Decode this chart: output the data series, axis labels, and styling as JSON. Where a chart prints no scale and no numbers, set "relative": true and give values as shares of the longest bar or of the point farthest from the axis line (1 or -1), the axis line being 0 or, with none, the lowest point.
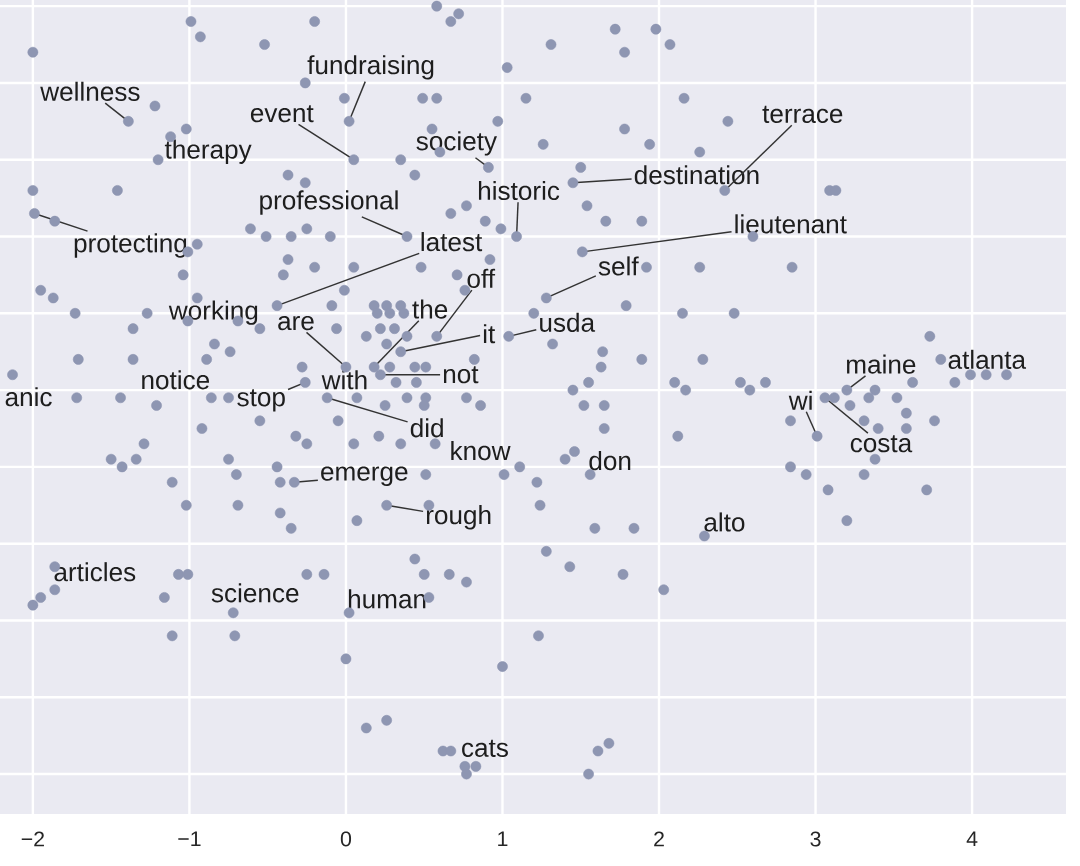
{
  "chart_data": {
    "type": "scatter",
    "relative": true,
    "color": "#8e96b2",
    "marker": "circle",
    "grid": true,
    "tick_labels": "x",
    "xlim": [
      -2.21,
      4.6
    ],
    "xticks": [
      {
        "value": -2,
        "label": "−2"
      },
      {
        "value": -1,
        "label": "−1"
      },
      0,
      1,
      2,
      3,
      4
    ],
    "x": [
      -0.99,
      -0.93,
      -0.2,
      -0.52,
      -2.0,
      -0.26,
      -0.01,
      -1.22,
      -1.39,
      0.02,
      -1.02,
      -1.12,
      -1.2,
      0.05,
      -0.37,
      -0.26,
      -2.0,
      -1.46,
      -1.99,
      -1.86,
      -0.95,
      -1.01,
      -0.61,
      -0.51,
      -0.35,
      -0.25,
      -0.1,
      -0.37,
      -0.2,
      0.05,
      -1.04,
      -0.4,
      -1.95,
      -1.87,
      -0.95,
      -0.44,
      -1.73,
      -1.01,
      -1.27,
      -1.36,
      -0.55,
      -0.69,
      -0.84,
      -0.74,
      -0.06,
      -0.09,
      -0.01,
      -1.71,
      -1.36,
      -0.89,
      -2.13,
      -0.28,
      -0.26,
      -1.72,
      -1.44,
      -1.21,
      -0.86,
      -0.75,
      -0.55,
      -0.92,
      -0.12,
      -0.05,
      0.58,
      0.67,
      0.72,
      1.31,
      1.72,
      1.98,
      1.78,
      2.07,
      1.03,
      0.49,
      0.58,
      1.15,
      2.16,
      0.97,
      0.55,
      0.6,
      1.78,
      1.94,
      2.26,
      0.91,
      1.26,
      0.35,
      0.44,
      1.5,
      1.45,
      0.67,
      0.77,
      0.89,
      0.99,
      1.09,
      1.54,
      1.66,
      1.89,
      0.39,
      1.51,
      0.92,
      1.92,
      2.26,
      0.48,
      0.71,
      1.28,
      1.79,
      2.15,
      0.76,
      1.04,
      1.2,
      1.32,
      1.64,
      1.89,
      2.28,
      0.82,
      1.63,
      1.55,
      1.45,
      1.52,
      1.65,
      2.1,
      2.17,
      0.77,
      0.86,
      1.65,
      2.12,
      0.18,
      0.26,
      0.35,
      0.2,
      0.28,
      0.37,
      0.22,
      0.31,
      0.13,
      0.26,
      0.39,
      0.35,
      0.18,
      0.28,
      0.44,
      0.51,
      0.0,
      0.32,
      0.45,
      0.51,
      0.25,
      0.39,
      0.5,
      0.58,
      0.22,
      2.44,
      2.42,
      3.09,
      3.13,
      2.6,
      2.85,
      2.48,
      3.73,
      3.8,
      3.89,
      3.99,
      4.09,
      4.22,
      3.2,
      3.38,
      3.34,
      3.52,
      3.62,
      2.52,
      2.58,
      2.68,
      3.01,
      3.06,
      3.12,
      3.22,
      3.31,
      3.4,
      3.58,
      3.58,
      3.76,
      2.84,
      2.84,
      2.94,
      3.08,
      3.2,
      3.31,
      3.38,
      3.71,
      -1.5,
      -1.43,
      -1.34,
      -1.29,
      -1.11,
      -1.02,
      -0.75,
      -0.7,
      -0.44,
      -0.42,
      -0.33,
      -0.32,
      -0.25,
      0.05,
      -0.69,
      -0.42,
      -0.35,
      0.07,
      -1.86,
      -1.86,
      -1.95,
      -2.0,
      -1.07,
      -1.01,
      -0.25,
      -0.14,
      -1.16,
      -0.72,
      0.02,
      -1.11,
      -0.71,
      0.0,
      0.21,
      0.35,
      0.57,
      0.51,
      1.01,
      1.11,
      1.4,
      1.46,
      1.56,
      1.22,
      1.24,
      0.26,
      0.53,
      1.59,
      1.84,
      2.29,
      0.44,
      1.28,
      0.66,
      0.77,
      0.5,
      1.43,
      1.77,
      0.53,
      2.03,
      1.23,
      1.0,
      0.13,
      0.26,
      0.62,
      0.67,
      0.76,
      0.83,
      0.77,
      1.55,
      1.61,
      1.68,
      0.07
    ],
    "values": [
      0.98,
      0.96,
      0.98,
      0.95,
      0.94,
      0.9,
      0.88,
      0.87,
      0.85,
      0.85,
      0.84,
      0.83,
      0.8,
      0.8,
      0.78,
      0.77,
      0.76,
      0.76,
      0.73,
      0.72,
      0.69,
      0.68,
      0.71,
      0.7,
      0.7,
      0.71,
      0.7,
      0.67,
      0.66,
      0.66,
      0.65,
      0.65,
      0.63,
      0.62,
      0.62,
      0.61,
      0.6,
      0.59,
      0.6,
      0.58,
      0.58,
      0.59,
      0.56,
      0.55,
      0.58,
      0.61,
      0.63,
      0.54,
      0.54,
      0.54,
      0.52,
      0.53,
      0.51,
      0.49,
      0.49,
      0.48,
      0.49,
      0.49,
      0.46,
      0.45,
      0.49,
      0.46,
      1.0,
      0.98,
      0.99,
      0.95,
      0.97,
      0.97,
      0.94,
      0.95,
      0.92,
      0.88,
      0.88,
      0.88,
      0.88,
      0.85,
      0.84,
      0.81,
      0.84,
      0.82,
      0.81,
      0.79,
      0.82,
      0.8,
      0.78,
      0.79,
      0.77,
      0.73,
      0.74,
      0.72,
      0.71,
      0.7,
      0.74,
      0.72,
      0.72,
      0.7,
      0.68,
      0.67,
      0.66,
      0.66,
      0.66,
      0.65,
      0.62,
      0.61,
      0.6,
      0.63,
      0.57,
      0.6,
      0.56,
      0.55,
      0.54,
      0.54,
      0.54,
      0.53,
      0.51,
      0.5,
      0.48,
      0.48,
      0.51,
      0.5,
      0.49,
      0.48,
      0.45,
      0.44,
      0.61,
      0.61,
      0.61,
      0.6,
      0.6,
      0.6,
      0.58,
      0.58,
      0.57,
      0.56,
      0.57,
      0.55,
      0.53,
      0.53,
      0.53,
      0.53,
      0.53,
      0.51,
      0.51,
      0.49,
      0.48,
      0.49,
      0.48,
      0.57,
      0.52,
      0.85,
      0.76,
      0.76,
      0.76,
      0.7,
      0.66,
      0.6,
      0.57,
      0.54,
      0.51,
      0.52,
      0.52,
      0.52,
      0.5,
      0.5,
      0.49,
      0.49,
      0.51,
      0.51,
      0.5,
      0.51,
      0.44,
      0.49,
      0.49,
      0.48,
      0.46,
      0.45,
      0.47,
      0.45,
      0.46,
      0.46,
      0.4,
      0.39,
      0.37,
      0.33,
      0.39,
      0.41,
      0.37,
      0.41,
      0.4,
      0.41,
      0.43,
      0.38,
      0.35,
      0.41,
      0.39,
      0.4,
      0.38,
      0.38,
      0.44,
      0.43,
      0.43,
      0.35,
      0.34,
      0.32,
      0.33,
      0.27,
      0.24,
      0.23,
      0.22,
      0.26,
      0.26,
      0.26,
      0.26,
      0.23,
      0.21,
      0.21,
      0.18,
      0.18,
      0.15,
      0.44,
      0.43,
      0.43,
      0.39,
      0.39,
      0.4,
      0.41,
      0.42,
      0.39,
      0.38,
      0.35,
      0.35,
      0.35,
      0.32,
      0.32,
      0.31,
      0.28,
      0.29,
      0.26,
      0.25,
      0.26,
      0.27,
      0.26,
      0.23,
      0.24,
      0.18,
      0.14,
      0.06,
      0.07,
      0.03,
      0.03,
      0.01,
      0.01,
      0.0,
      0.0,
      0.03,
      0.04,
      0.49
    ],
    "annotations": [
      {
        "text": "fundraising",
        "x": 0.02,
        "y": 0.85
      },
      {
        "text": "wellness",
        "x": -1.39,
        "y": 0.85
      },
      {
        "text": "event",
        "x": 0.05,
        "y": 0.8
      },
      {
        "text": "society",
        "x": 0.91,
        "y": 0.79
      },
      {
        "text": "therapy",
        "x": -1.2,
        "y": 0.8
      },
      {
        "text": "terrace",
        "x": 2.42,
        "y": 0.76
      },
      {
        "text": "destination",
        "x": 1.45,
        "y": 0.77
      },
      {
        "text": "historic",
        "x": 1.09,
        "y": 0.7
      },
      {
        "text": "professional",
        "x": 0.39,
        "y": 0.7
      },
      {
        "text": "lieutenant",
        "x": 1.51,
        "y": 0.68
      },
      {
        "text": "protecting",
        "x": -1.99,
        "y": 0.73
      },
      {
        "text": "latest",
        "x": -0.44,
        "y": 0.61
      },
      {
        "text": "self",
        "x": 1.28,
        "y": 0.62
      },
      {
        "text": "off",
        "x": 0.58,
        "y": 0.57
      },
      {
        "text": "the",
        "x": 0.18,
        "y": 0.53
      },
      {
        "text": "working",
        "x": -0.55,
        "y": 0.58
      },
      {
        "text": "are",
        "x": 0.0,
        "y": 0.53
      },
      {
        "text": "it",
        "x": 0.35,
        "y": 0.55
      },
      {
        "text": "usda",
        "x": 1.04,
        "y": 0.57
      },
      {
        "text": "maine",
        "x": 3.2,
        "y": 0.5
      },
      {
        "text": "atlanta",
        "x": 3.8,
        "y": 0.54
      },
      {
        "text": "notice",
        "x": -0.86,
        "y": 0.49
      },
      {
        "text": "anic",
        "x": -2.13,
        "y": 0.52
      },
      {
        "text": "with",
        "x": 0.07,
        "y": 0.49
      },
      {
        "text": "not",
        "x": 0.22,
        "y": 0.52
      },
      {
        "text": "stop",
        "x": -0.26,
        "y": 0.51
      },
      {
        "text": "did",
        "x": -0.12,
        "y": 0.49
      },
      {
        "text": "wi",
        "x": 3.01,
        "y": 0.44
      },
      {
        "text": "costa",
        "x": 3.06,
        "y": 0.49
      },
      {
        "text": "know",
        "x": 1.01,
        "y": 0.39
      },
      {
        "text": "don",
        "x": 1.56,
        "y": 0.39
      },
      {
        "text": "emerge",
        "x": -0.33,
        "y": 0.38
      },
      {
        "text": "rough",
        "x": 0.26,
        "y": 0.35
      },
      {
        "text": "alto",
        "x": 2.29,
        "y": 0.31
      },
      {
        "text": "articles",
        "x": -1.86,
        "y": 0.24
      },
      {
        "text": "science",
        "x": -0.72,
        "y": 0.21
      },
      {
        "text": "human",
        "x": 0.02,
        "y": 0.21
      },
      {
        "text": "cats",
        "x": 0.76,
        "y": 0.01
      }
    ]
  }
}
